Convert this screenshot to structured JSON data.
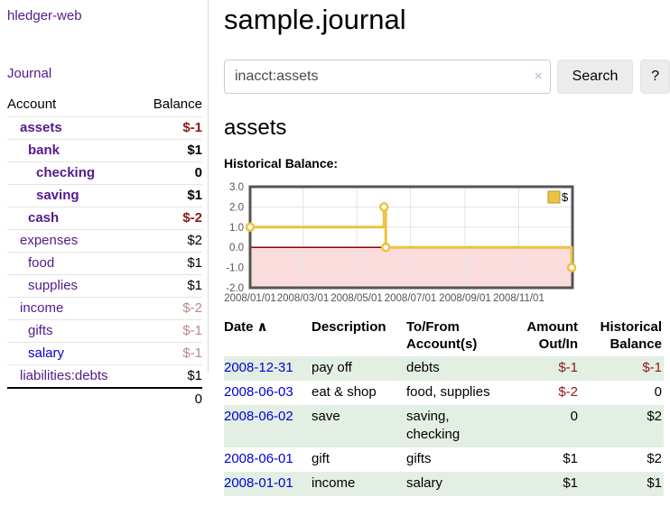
{
  "colors": {
    "link_purple": "#551a8b",
    "link_blue": "#0000d6",
    "negative_strong": "#8b1a1a",
    "negative_muted": "#bb8888",
    "row_highlight_green": "#e3efe3",
    "chart_line_gold": "#edc240",
    "chart_negative_fill": "#fbdcdc",
    "chart_zero_line": "#8b0000",
    "chart_border": "#545454"
  },
  "app": {
    "brand": "hledger-web",
    "nav": {
      "journal": "Journal"
    }
  },
  "sidebar": {
    "headers": {
      "account": "Account",
      "balance": "Balance"
    },
    "accounts": [
      {
        "name": "assets",
        "balance": "$-1",
        "level": 1,
        "bold": true,
        "unvisited": false
      },
      {
        "name": "bank",
        "balance": "$1",
        "level": 2,
        "bold": true,
        "unvisited": false
      },
      {
        "name": "checking",
        "balance": "0",
        "level": 3,
        "bold": true,
        "unvisited": false
      },
      {
        "name": "saving",
        "balance": "$1",
        "level": 3,
        "bold": true,
        "unvisited": false
      },
      {
        "name": "cash",
        "balance": "$-2",
        "level": 2,
        "bold": true,
        "unvisited": false
      },
      {
        "name": "expenses",
        "balance": "$2",
        "level": 1,
        "bold": false,
        "unvisited": false
      },
      {
        "name": "food",
        "balance": "$1",
        "level": 2,
        "bold": false,
        "unvisited": false
      },
      {
        "name": "supplies",
        "balance": "$1",
        "level": 2,
        "bold": false,
        "unvisited": false
      },
      {
        "name": "income",
        "balance": "$-2",
        "level": 1,
        "bold": false,
        "unvisited": false
      },
      {
        "name": "gifts",
        "balance": "$-1",
        "level": 2,
        "bold": false,
        "unvisited": false
      },
      {
        "name": "salary",
        "balance": "$-1",
        "level": 2,
        "bold": false,
        "unvisited": true
      },
      {
        "name": "liabilities:debts",
        "balance": "$1",
        "level": 1,
        "bold": false,
        "unvisited": false
      }
    ],
    "total": "0"
  },
  "header": {
    "title": "sample.journal"
  },
  "search": {
    "value": "inacct:assets",
    "clear_label": "×",
    "button_label": "Search",
    "help_label": "?"
  },
  "account_view": {
    "title": "assets",
    "section_label": "Historical Balance:"
  },
  "chart_data": {
    "type": "line",
    "step": true,
    "title": "Historical Balance",
    "xlim": [
      "2008-01-01",
      "2009-01-01"
    ],
    "ylim": [
      -2,
      3
    ],
    "x_ticks": [
      "2008/01/01",
      "2008/03/01",
      "2008/05/01",
      "2008/07/01",
      "2008/09/01",
      "2008/11/01"
    ],
    "y_ticks": [
      "3.0",
      "2.0",
      "1.0",
      "0.0",
      "-1.0",
      "-2.0"
    ],
    "grid": true,
    "legend": {
      "label": "$",
      "position": "top-right"
    },
    "series": [
      {
        "name": "$",
        "points": [
          {
            "x": "2008-01-01",
            "y": 1
          },
          {
            "x": "2008-06-01",
            "y": 2
          },
          {
            "x": "2008-06-03",
            "y": 0
          },
          {
            "x": "2008-12-31",
            "y": -1
          }
        ]
      }
    ]
  },
  "register": {
    "headers": {
      "date": "Date",
      "description": "Description",
      "accounts": "To/From\nAccount(s)",
      "amount": "Amount\nOut/In",
      "balance": "Historical\nBalance"
    },
    "sort_icon": "∧",
    "rows": [
      {
        "date": "2008-12-31",
        "description": "pay off",
        "accounts": "debts",
        "amount": "$-1",
        "balance": "$-1"
      },
      {
        "date": "2008-06-03",
        "description": "eat & shop",
        "accounts": "food, supplies",
        "amount": "$-2",
        "balance": "0"
      },
      {
        "date": "2008-06-02",
        "description": "save",
        "accounts": "saving,\nchecking",
        "amount": "0",
        "balance": "$2"
      },
      {
        "date": "2008-06-01",
        "description": "gift",
        "accounts": "gifts",
        "amount": "$1",
        "balance": "$2"
      },
      {
        "date": "2008-01-01",
        "description": "income",
        "accounts": "salary",
        "amount": "$1",
        "balance": "$1"
      }
    ]
  }
}
